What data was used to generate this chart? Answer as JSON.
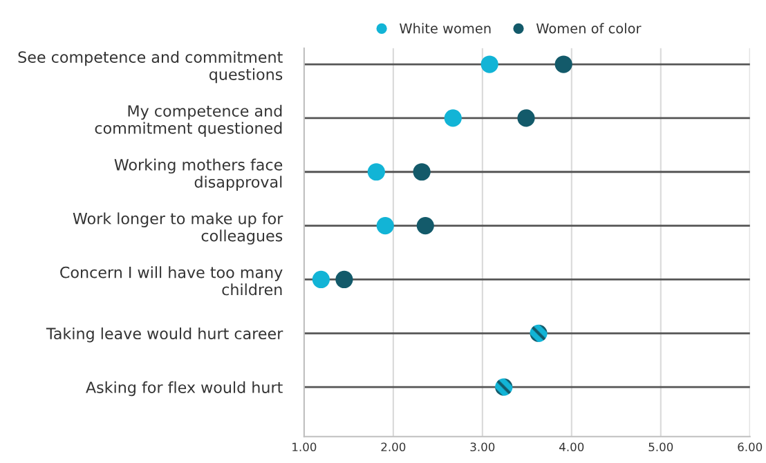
{
  "chart_data": {
    "type": "scatter",
    "categories": [
      "See competence and commitment\nquestions",
      "My competence and\ncommitment questioned",
      "Working mothers face\ndisapproval",
      "Work longer to make up for\ncolleagues",
      "Concern I will have too many\nchildren",
      "Taking leave would hurt career",
      "Asking for flex would hurt"
    ],
    "orientation": "horizontal",
    "series": [
      {
        "name": "White women",
        "color": "#12b4d6",
        "values": [
          3.08,
          2.67,
          1.81,
          1.91,
          1.19,
          null,
          null
        ]
      },
      {
        "name": "Women of color",
        "color": "#135a6a",
        "values": [
          3.91,
          3.49,
          2.32,
          2.36,
          1.45,
          null,
          null
        ]
      },
      {
        "color": "#12b4d6",
        "values": [
          null,
          null,
          null,
          null,
          null,
          3.63,
          3.24
        ]
      }
    ],
    "xlim": [
      1,
      6
    ],
    "xticks": [
      {
        "value": 1,
        "label": "1.00"
      },
      {
        "value": 2,
        "label": "2.00"
      },
      {
        "value": 3,
        "label": "3.00"
      },
      {
        "value": 4,
        "label": "4.00"
      },
      {
        "value": 5,
        "label": "5.00"
      },
      {
        "value": 6,
        "label": "6.00"
      }
    ],
    "grid": true,
    "legend": "top",
    "marker": "circle"
  }
}
